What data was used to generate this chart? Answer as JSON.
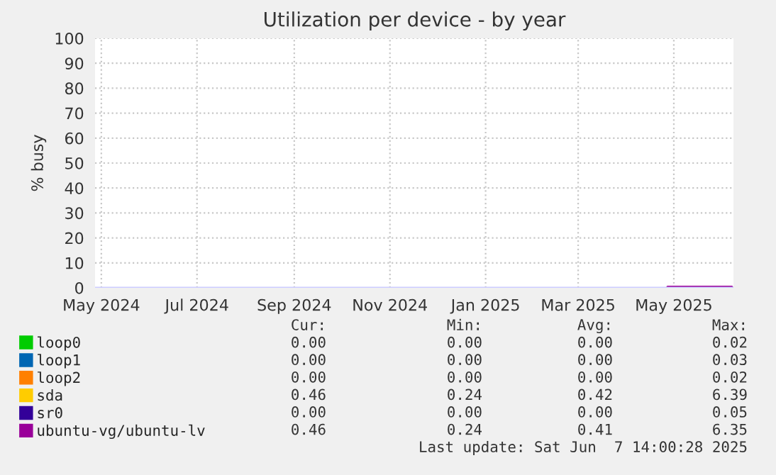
{
  "chart_data": {
    "type": "line",
    "title": "Utilization per device - by year",
    "ylabel": "% busy",
    "xlim": [
      "2024-04-27",
      "2025-06-08"
    ],
    "xticks": [
      {
        "value": "2024-05-01",
        "label": "May 2024"
      },
      {
        "value": "2024-07-01",
        "label": "Jul 2024"
      },
      {
        "value": "2024-09-01",
        "label": "Sep 2024"
      },
      {
        "value": "2024-11-01",
        "label": "Nov 2024"
      },
      {
        "value": "2025-01-01",
        "label": "Jan 2025"
      },
      {
        "value": "2025-03-01",
        "label": "Mar 2025"
      },
      {
        "value": "2025-05-01",
        "label": "May 2025"
      }
    ],
    "ylim": [
      0,
      100
    ],
    "yticks": [
      0,
      10,
      20,
      30,
      40,
      50,
      60,
      70,
      80,
      90,
      100
    ],
    "grid": true,
    "legend": "bottom",
    "line_style": "solid",
    "series": [
      {
        "name": "loop0",
        "color": "#00cc00"
      },
      {
        "name": "loop1",
        "color": "#0066b3"
      },
      {
        "name": "loop2",
        "color": "#ff8000"
      },
      {
        "name": "sda",
        "color": "#ffcc00"
      },
      {
        "name": "sr0",
        "color": "#330099"
      },
      {
        "name": "ubuntu-vg/ubuntu-lv",
        "color": "#990099",
        "x": [
          "2025-04-27",
          "2025-06-07"
        ],
        "values": [
          0.4,
          0.4
        ]
      }
    ],
    "annotations": [
      "Cur:",
      "Min:",
      "Avg:",
      "Max:",
      "0.00",
      "0.00",
      "0.00",
      "0.02",
      "0.00",
      "0.00",
      "0.00",
      "0.03",
      "0.00",
      "0.00",
      "0.00",
      "0.02",
      "0.46",
      "0.24",
      "0.42",
      "6.39",
      "0.00",
      "0.00",
      "0.00",
      "0.05",
      "0.46",
      "0.24",
      "0.41",
      "6.35",
      "Last update: Sat Jun  7 14:00:28 2025"
    ]
  }
}
